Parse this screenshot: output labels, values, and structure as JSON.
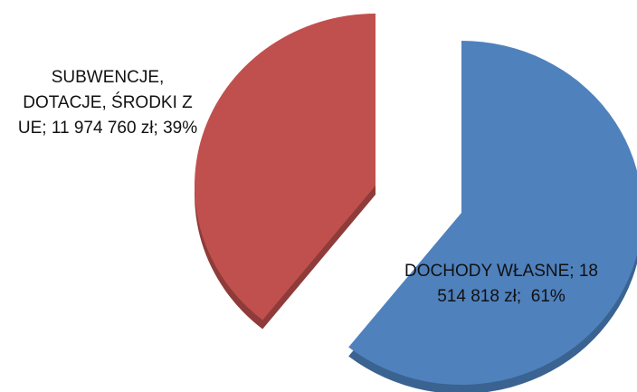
{
  "chart_data": {
    "type": "pie",
    "categories": [
      "DOCHODY WŁASNE",
      "SUBWENCJE, DOTACJE, ŚRODKI Z UE"
    ],
    "values": [
      18514818,
      11974760
    ],
    "value_labels": [
      "18 514 818 zł",
      "11 974 760 zł"
    ],
    "percent_labels": [
      "61%",
      "39%"
    ],
    "colors": [
      "#4f81bd",
      "#c0504d"
    ],
    "side_colors": [
      "#3a6391",
      "#8e3b39"
    ]
  }
}
